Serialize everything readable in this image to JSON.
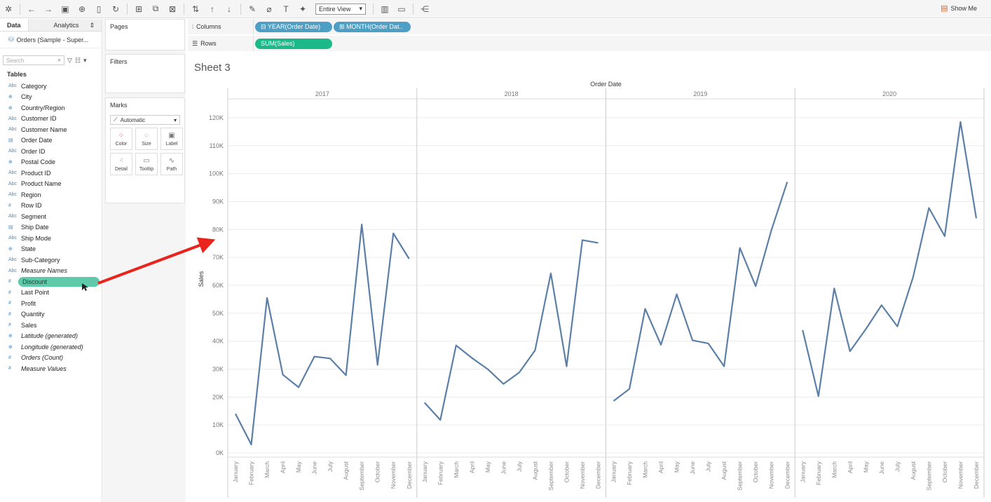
{
  "toolbar": {
    "icons": [
      "tableau-logo-icon",
      "back-icon",
      "forward-icon",
      "save-icon",
      "new-datasource-icon",
      "pause-icon",
      "refresh-icon",
      "new-sheet-icon",
      "duplicate-icon",
      "clear-icon",
      "swap-icon",
      "sort-asc-icon",
      "sort-desc-icon",
      "highlight-icon",
      "group-icon",
      "label-icon",
      "pin-icon"
    ],
    "fit_select": "Entire View",
    "show_me": "Show Me"
  },
  "data_pane": {
    "tab_data": "Data",
    "tab_analytics": "Analytics",
    "datasource": "Orders (Sample - Super...",
    "search_placeholder": "Search",
    "tables_label": "Tables",
    "fields": [
      {
        "type": "Abc",
        "name": "Category"
      },
      {
        "type": "geo",
        "name": "City"
      },
      {
        "type": "geo",
        "name": "Country/Region"
      },
      {
        "type": "Abc",
        "name": "Customer ID"
      },
      {
        "type": "Abc",
        "name": "Customer Name"
      },
      {
        "type": "date",
        "name": "Order Date"
      },
      {
        "type": "Abc",
        "name": "Order ID"
      },
      {
        "type": "geo",
        "name": "Postal Code"
      },
      {
        "type": "Abc",
        "name": "Product ID"
      },
      {
        "type": "Abc",
        "name": "Product Name"
      },
      {
        "type": "Abc",
        "name": "Region"
      },
      {
        "type": "#",
        "name": "Row ID"
      },
      {
        "type": "Abc",
        "name": "Segment"
      },
      {
        "type": "date",
        "name": "Ship Date"
      },
      {
        "type": "Abc",
        "name": "Ship Mode"
      },
      {
        "type": "geo",
        "name": "State"
      },
      {
        "type": "Abc",
        "name": "Sub-Category"
      },
      {
        "type": "Abc",
        "name": "Measure Names",
        "italic": true
      },
      {
        "type": "#",
        "name": "Discount",
        "dragging": true
      },
      {
        "type": "#",
        "name": "Last Point"
      },
      {
        "type": "#",
        "name": "Profit"
      },
      {
        "type": "#",
        "name": "Quantity"
      },
      {
        "type": "#",
        "name": "Sales"
      },
      {
        "type": "geo",
        "name": "Latitude (generated)",
        "italic": true
      },
      {
        "type": "geo",
        "name": "Longitude (generated)",
        "italic": true
      },
      {
        "type": "#",
        "name": "Orders (Count)",
        "italic": true
      },
      {
        "type": "#",
        "name": "Measure Values",
        "italic": true
      }
    ]
  },
  "cards": {
    "pages": "Pages",
    "filters": "Filters",
    "marks": "Marks",
    "mark_type": "Automatic",
    "mark_buttons": [
      "Color",
      "Size",
      "Label",
      "Detail",
      "Tooltip",
      "Path"
    ]
  },
  "shelves": {
    "columns_label": "Columns",
    "rows_label": "Rows",
    "columns_pills": [
      "YEAR(Order Date)",
      "MONTH(Order Dat.."
    ],
    "rows_pills": [
      "SUM(Sales)"
    ]
  },
  "sheet": {
    "title": "Sheet 3"
  },
  "colors": {
    "line": "#5b7fa6",
    "arrow": "#e8241d",
    "dim_pill": "#4d9fc5",
    "measure_pill": "#1bb98a"
  },
  "chart_data": {
    "type": "line",
    "xlabel": "Order Date",
    "ylabel": "Sales",
    "ylim": [
      0,
      125000
    ],
    "y_ticks": [
      "0K",
      "10K",
      "20K",
      "30K",
      "40K",
      "50K",
      "60K",
      "70K",
      "80K",
      "90K",
      "100K",
      "110K",
      "120K"
    ],
    "panes": [
      "2017",
      "2018",
      "2019",
      "2020"
    ],
    "categories": [
      "January",
      "February",
      "March",
      "April",
      "May",
      "June",
      "July",
      "August",
      "September",
      "October",
      "November",
      "December"
    ],
    "series": [
      {
        "pane": "2017",
        "values": [
          14000,
          3000,
          55500,
          28000,
          23500,
          34500,
          33800,
          27800,
          81800,
          31500,
          78600,
          69500
        ]
      },
      {
        "pane": "2018",
        "values": [
          18000,
          11800,
          38500,
          34000,
          30000,
          24700,
          28800,
          36700,
          64300,
          31000,
          76200,
          75200
        ]
      },
      {
        "pane": "2019",
        "values": [
          18600,
          22900,
          51600,
          38700,
          56800,
          40300,
          39200,
          31000,
          73400,
          59700,
          79800,
          97000
        ]
      },
      {
        "pane": "2020",
        "values": [
          44000,
          20300,
          58900,
          36400,
          44300,
          52900,
          45300,
          63000,
          87700,
          77600,
          118500,
          84000
        ]
      }
    ]
  }
}
